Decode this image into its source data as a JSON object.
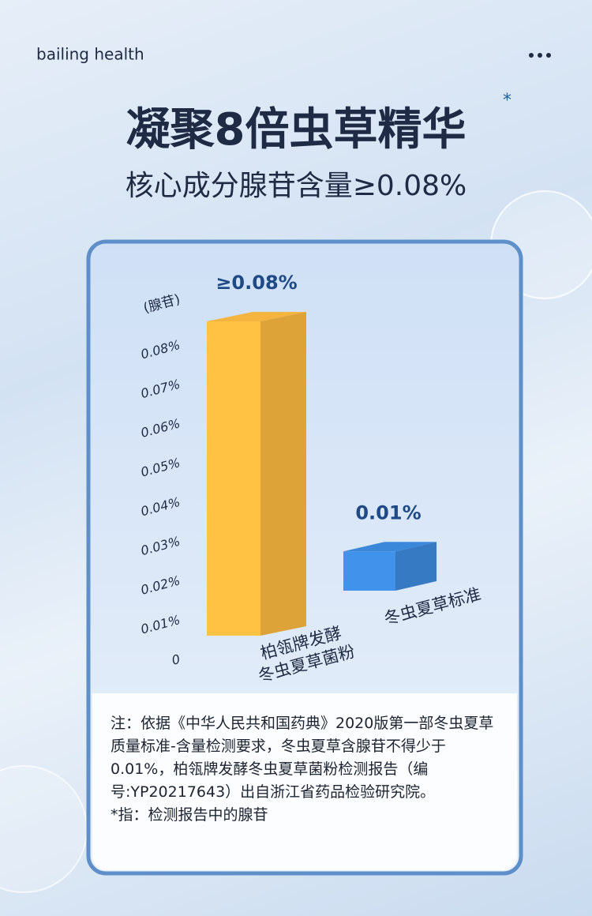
{
  "brand": "bailing health",
  "chart_data": {
    "type": "bar",
    "title": "凝聚8倍虫草精华",
    "title_mark": "*",
    "subtitle": "核心成分腺苷含量≥0.08%",
    "y_label": "(腺苷)",
    "categories": [
      "柏瓴牌发酵\n冬虫夏草菌粉",
      "冬虫夏草标准"
    ],
    "values": [
      0.08,
      0.01
    ],
    "value_labels": [
      "≥0.08%",
      "0.01%"
    ],
    "colors": [
      "#f5b43e",
      "#3b87d9"
    ],
    "ylim": [
      0,
      0.08
    ],
    "yticks": [
      0,
      {
        "value": 0.01,
        "label": "0.01%"
      },
      {
        "value": 0.02,
        "label": "0.02%"
      },
      {
        "value": 0.03,
        "label": "0.03%"
      },
      {
        "value": 0.04,
        "label": "0.04%"
      },
      {
        "value": 0.05,
        "label": "0.05%"
      },
      {
        "value": 0.06,
        "label": "0.06%"
      },
      {
        "value": 0.07,
        "label": "0.07%"
      },
      {
        "value": 0.08,
        "label": "0.08%"
      }
    ]
  },
  "note": [
    "注：依据《中华人民共和国药典》2020版第一部冬虫夏草质量标准-含量检测要求，冬虫夏草含腺苷不得少于0.01%，柏瓴牌发酵冬虫夏草菌粉检测报告（编号:YP20217643）出自浙江省药品检验研究院。",
    "*指：检测报告中的腺苷"
  ]
}
